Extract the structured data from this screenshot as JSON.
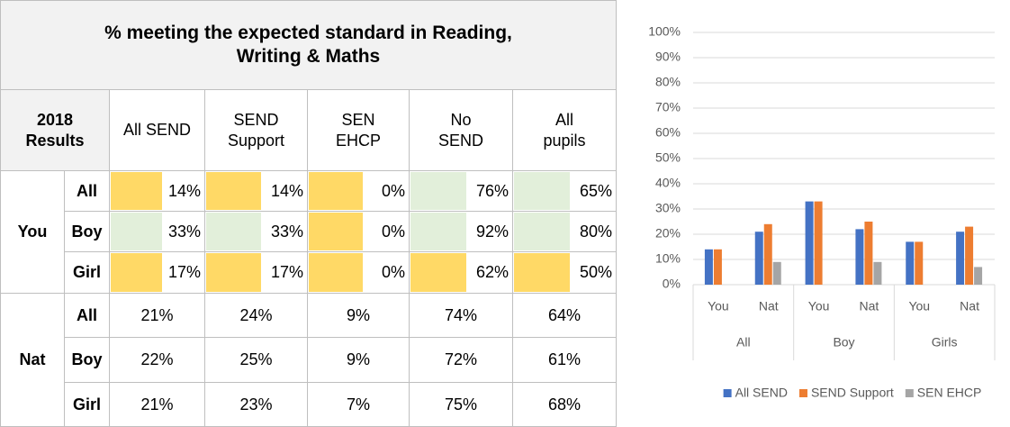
{
  "table": {
    "title": [
      "% meeting the expected standard in Reading,",
      "Writing & Maths"
    ],
    "corner": [
      "2018",
      "Results"
    ],
    "columns": [
      [
        "All SEND"
      ],
      [
        "SEND",
        "Support"
      ],
      [
        "SEN",
        "EHCP"
      ],
      [
        "No",
        "SEND"
      ],
      [
        "All",
        "pupils"
      ]
    ],
    "groups": [
      {
        "label": "You",
        "rows": [
          {
            "label": "All",
            "cells": [
              {
                "text": "14%",
                "color": "#ffd966"
              },
              {
                "text": "14%",
                "color": "#ffd966"
              },
              {
                "text": "0%",
                "color": "#ffd966"
              },
              {
                "text": "76%",
                "color": "#e2efda"
              },
              {
                "text": "65%",
                "color": "#e2efda"
              }
            ]
          },
          {
            "label": "Boy",
            "cells": [
              {
                "text": "33%",
                "color": "#e2efda"
              },
              {
                "text": "33%",
                "color": "#e2efda"
              },
              {
                "text": "0%",
                "color": "#ffd966"
              },
              {
                "text": "92%",
                "color": "#e2efda"
              },
              {
                "text": "80%",
                "color": "#e2efda"
              }
            ]
          },
          {
            "label": "Girl",
            "cells": [
              {
                "text": "17%",
                "color": "#ffd966"
              },
              {
                "text": "17%",
                "color": "#ffd966"
              },
              {
                "text": "0%",
                "color": "#ffd966"
              },
              {
                "text": "62%",
                "color": "#ffd966"
              },
              {
                "text": "50%",
                "color": "#ffd966"
              }
            ]
          }
        ]
      },
      {
        "label": "Nat",
        "rows": [
          {
            "label": "All",
            "cells": [
              "21%",
              "24%",
              "9%",
              "74%",
              "64%"
            ]
          },
          {
            "label": "Boy",
            "cells": [
              "22%",
              "25%",
              "9%",
              "72%",
              "61%"
            ]
          },
          {
            "label": "Girl",
            "cells": [
              "21%",
              "23%",
              "7%",
              "75%",
              "68%"
            ]
          }
        ]
      }
    ]
  },
  "chart_data": {
    "type": "bar",
    "categories": [
      "You",
      "Nat",
      "You",
      "Nat",
      "You",
      "Nat"
    ],
    "groups": [
      "All",
      "Boy",
      "Girls"
    ],
    "series": [
      {
        "name": "All SEND",
        "color": "#4472c4",
        "values": [
          14,
          21,
          33,
          22,
          17,
          21
        ]
      },
      {
        "name": "SEND Support",
        "color": "#ed7d31",
        "values": [
          14,
          24,
          33,
          25,
          17,
          23
        ]
      },
      {
        "name": "SEN EHCP",
        "color": "#a5a5a5",
        "values": [
          0,
          9,
          0,
          9,
          0,
          7
        ]
      }
    ],
    "ylim": [
      0,
      100
    ],
    "yticks": [
      {
        "value": 0,
        "label": "0%"
      },
      {
        "value": 10,
        "label": "10%"
      },
      {
        "value": 20,
        "label": "20%"
      },
      {
        "value": 30,
        "label": "30%"
      },
      {
        "value": 40,
        "label": "40%"
      },
      {
        "value": 50,
        "label": "50%"
      },
      {
        "value": 60,
        "label": "60%"
      },
      {
        "value": 70,
        "label": "70%"
      },
      {
        "value": 80,
        "label": "80%"
      },
      {
        "value": 90,
        "label": "90%"
      },
      {
        "value": 100,
        "label": "100%"
      }
    ],
    "grid": true,
    "legend": "bottom"
  }
}
